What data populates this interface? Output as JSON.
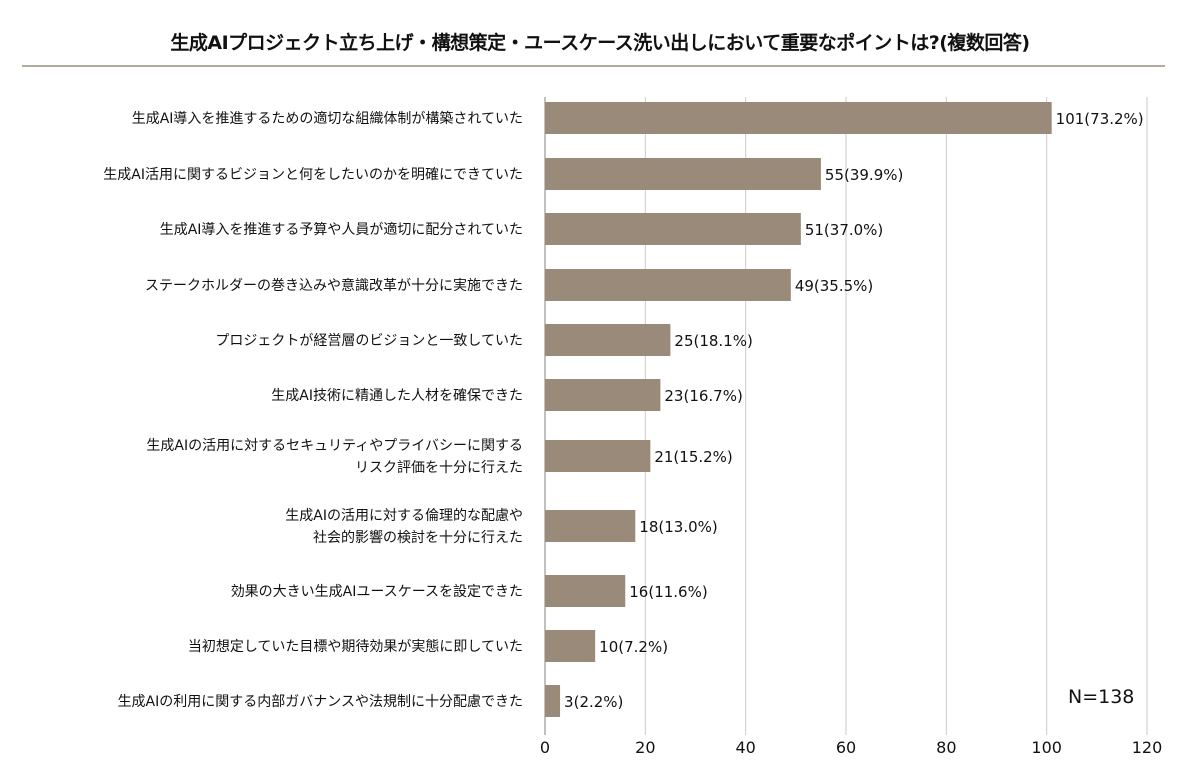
{
  "chart_data": {
    "type": "bar",
    "orientation": "horizontal",
    "title": "生成AIプロジェクト立ち上げ・構想策定・ユースケース洗い出しにおいて重要なポイントは?(複数回答)",
    "categories": [
      [
        "生成AI導入を推進するための適切な組織体制が構築されていた"
      ],
      [
        "生成AI活用に関するビジョンと何をしたいのかを明確にできていた"
      ],
      [
        "生成AI導入を推進する予算や人員が適切に配分されていた"
      ],
      [
        "ステークホルダーの巻き込みや意識改革が十分に実施できた"
      ],
      [
        "プロジェクトが経営層のビジョンと一致していた"
      ],
      [
        "生成AI技術に精通した人材を確保できた"
      ],
      [
        "生成AIの活用に対するセキュリティやプライバシーに関する",
        "リスク評価を十分に行えた"
      ],
      [
        "生成AIの活用に対する倫理的な配慮や",
        "社会的影響の検討を十分に行えた"
      ],
      [
        "効果の大きい生成AIユースケースを設定できた"
      ],
      [
        "当初想定していた目標や期待効果が実態に即していた"
      ],
      [
        "生成AIの利用に関する内部ガバナンスや法規制に十分配慮できた"
      ]
    ],
    "values": [
      101,
      55,
      51,
      49,
      25,
      23,
      21,
      18,
      16,
      10,
      3
    ],
    "data_labels": [
      "101(73.2%)",
      "55(39.9%)",
      "51(37.0%)",
      "49(35.5%)",
      "25(18.1%)",
      "23(16.7%)",
      "21(15.2%)",
      "18(13.0%)",
      "16(11.6%)",
      "10(7.2%)",
      "3(2.2%)"
    ],
    "xlim": [
      0,
      120
    ],
    "xticks": [
      "0",
      "20",
      "40",
      "60",
      "80",
      "100",
      "120"
    ],
    "grid": true,
    "bar_color": "#9a8a79",
    "annotation": "N=138"
  }
}
